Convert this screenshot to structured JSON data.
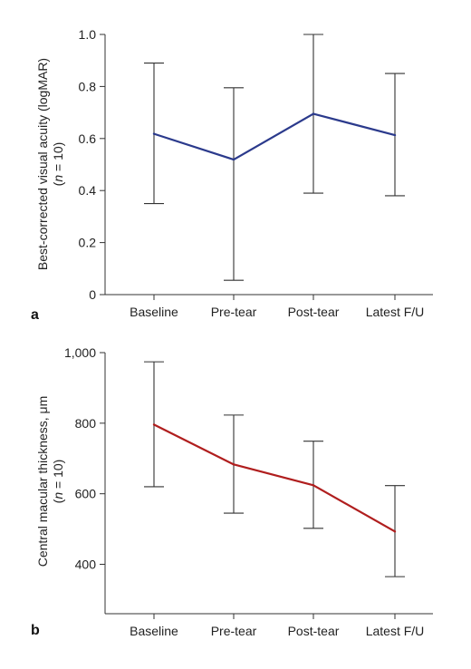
{
  "chart_data": [
    {
      "type": "line",
      "panel_label": "a",
      "categories": [
        "Baseline",
        "Pre-tear",
        "Post-tear",
        "Latest F/U"
      ],
      "ylabel": "Best-corrected visual acuity (logMAR)",
      "ylabel_sub": "(n = 10)",
      "ylim": [
        0,
        1.0
      ],
      "yticks": [
        "0",
        "0.2",
        "0.4",
        "0.6",
        "0.8",
        "1.0"
      ],
      "ytick_values": [
        0,
        0.2,
        0.4,
        0.6,
        0.8,
        1.0
      ],
      "series": [
        {
          "color": "#2b3a8c",
          "values": [
            0.618,
            0.519,
            0.695,
            0.613
          ],
          "error_low": [
            0.35,
            0.055,
            0.39,
            0.38
          ],
          "error_high": [
            0.89,
            0.795,
            1.0,
            0.85
          ]
        }
      ],
      "grid": false
    },
    {
      "type": "line",
      "panel_label": "b",
      "categories": [
        "Baseline",
        "Pre-tear",
        "Post-tear",
        "Latest F/U"
      ],
      "ylabel": "Central macular thickness, μm",
      "ylabel_sub": "(n = 10)",
      "ylim": [
        260,
        1000
      ],
      "yticks": [
        "400",
        "600",
        "800",
        "1,000"
      ],
      "ytick_values": [
        400,
        600,
        800,
        1000
      ],
      "series": [
        {
          "color": "#b01e1e",
          "values": [
            796,
            683,
            624,
            493
          ],
          "error_low": [
            620,
            545,
            502,
            365
          ],
          "error_high": [
            974,
            823,
            749,
            623
          ]
        }
      ],
      "grid": false
    }
  ]
}
